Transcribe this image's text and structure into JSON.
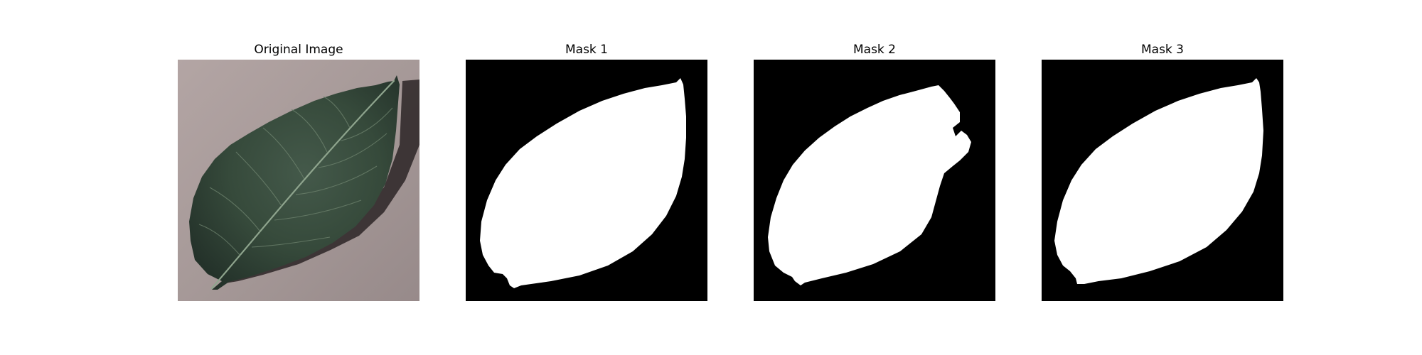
{
  "panels": [
    {
      "title": "Original Image",
      "kind": "photo"
    },
    {
      "title": "Mask 1",
      "kind": "mask"
    },
    {
      "title": "Mask 2",
      "kind": "mask"
    },
    {
      "title": "Mask 3",
      "kind": "mask"
    }
  ],
  "colors": {
    "background": "#ffffff",
    "mask_background": "#000000",
    "mask_foreground": "#ffffff",
    "photo_background": "#a69998",
    "leaf_dark": "#2a3b2d",
    "leaf_mid": "#3e5340",
    "leaf_vein": "#8ea48d",
    "shadow": "#2b2526"
  }
}
